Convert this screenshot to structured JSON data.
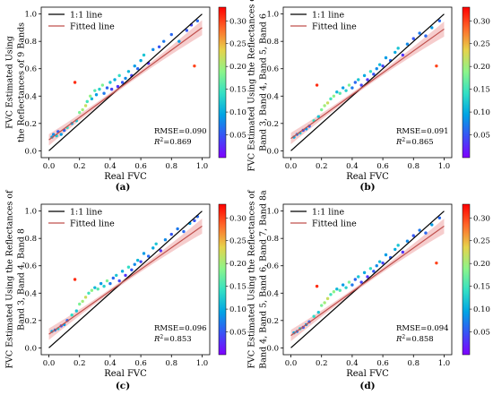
{
  "shared": {
    "x_label": "Real FVC",
    "ticks": [
      "0.0",
      "0.2",
      "0.4",
      "0.6",
      "0.8",
      "1.0"
    ],
    "colorbar_ticks": [
      "0.05",
      "0.10",
      "0.15",
      "0.20",
      "0.25",
      "0.30"
    ],
    "legend": [
      "1:1 line",
      "Fitted line"
    ],
    "colors": {
      "one_to_one": "#000000",
      "fitted": "#c0504d",
      "band": "#f2b8b8"
    },
    "colormap": [
      "#7f00ff",
      "#3a52f5",
      "#00a4e4",
      "#33e0c4",
      "#8cf58a",
      "#e6d34b",
      "#ff6a2a",
      "#ff0000"
    ]
  },
  "chart_data": [
    {
      "type": "scatter",
      "panel_label": "(a)",
      "ylabel": [
        "FVC Estimated Using",
        "the Reflectances of 9 Bands"
      ],
      "xlabel": "Real FVC",
      "xlim": [
        -0.05,
        1.05
      ],
      "ylim": [
        -0.05,
        1.05
      ],
      "colorbar_range": [
        0,
        0.33
      ],
      "rmse": "RMSE=0.090",
      "r2_value": "=0.869",
      "fit": {
        "slope": 0.82,
        "intercept": 0.08
      },
      "points": [
        [
          0.02,
          0.1,
          0.1
        ],
        [
          0.03,
          0.12,
          0.08
        ],
        [
          0.05,
          0.11,
          0.12
        ],
        [
          0.06,
          0.14,
          0.05
        ],
        [
          0.08,
          0.12,
          0.09
        ],
        [
          0.1,
          0.15,
          0.06
        ],
        [
          0.12,
          0.17,
          0.14
        ],
        [
          0.15,
          0.2,
          0.1
        ],
        [
          0.17,
          0.5,
          0.31
        ],
        [
          0.18,
          0.22,
          0.12
        ],
        [
          0.2,
          0.28,
          0.18
        ],
        [
          0.22,
          0.3,
          0.2
        ],
        [
          0.24,
          0.33,
          0.22
        ],
        [
          0.25,
          0.36,
          0.15
        ],
        [
          0.27,
          0.4,
          0.19
        ],
        [
          0.28,
          0.38,
          0.11
        ],
        [
          0.3,
          0.44,
          0.16
        ],
        [
          0.31,
          0.41,
          0.09
        ],
        [
          0.33,
          0.45,
          0.13
        ],
        [
          0.35,
          0.48,
          0.18
        ],
        [
          0.36,
          0.42,
          0.07
        ],
        [
          0.38,
          0.46,
          0.06
        ],
        [
          0.4,
          0.5,
          0.12
        ],
        [
          0.41,
          0.45,
          0.04
        ],
        [
          0.43,
          0.52,
          0.1
        ],
        [
          0.45,
          0.47,
          0.03
        ],
        [
          0.46,
          0.55,
          0.14
        ],
        [
          0.48,
          0.5,
          0.05
        ],
        [
          0.5,
          0.53,
          0.08
        ],
        [
          0.52,
          0.58,
          0.11
        ],
        [
          0.54,
          0.55,
          0.04
        ],
        [
          0.56,
          0.62,
          0.09
        ],
        [
          0.58,
          0.6,
          0.06
        ],
        [
          0.6,
          0.66,
          0.1
        ],
        [
          0.62,
          0.7,
          0.12
        ],
        [
          0.65,
          0.64,
          0.03
        ],
        [
          0.68,
          0.74,
          0.08
        ],
        [
          0.72,
          0.76,
          0.05
        ],
        [
          0.75,
          0.8,
          0.07
        ],
        [
          0.8,
          0.85,
          0.06
        ],
        [
          0.85,
          0.8,
          0.09
        ],
        [
          0.9,
          0.88,
          0.05
        ],
        [
          0.93,
          0.92,
          0.04
        ],
        [
          0.95,
          0.62,
          0.3
        ],
        [
          0.97,
          0.95,
          0.06
        ]
      ]
    },
    {
      "type": "scatter",
      "panel_label": "(b)",
      "ylabel": [
        "FVC Estimated Using the Reflectances of",
        "Band 3, Band 4, Band 5, Band 6"
      ],
      "xlabel": "Real FVC",
      "xlim": [
        -0.05,
        1.05
      ],
      "ylim": [
        -0.05,
        1.05
      ],
      "colorbar_range": [
        0,
        0.33
      ],
      "rmse": "RMSE=0.091",
      "r2_value": "=0.865",
      "fit": {
        "slope": 0.8,
        "intercept": 0.09
      },
      "points": [
        [
          0.02,
          0.1,
          0.1
        ],
        [
          0.04,
          0.12,
          0.07
        ],
        [
          0.06,
          0.13,
          0.12
        ],
        [
          0.08,
          0.15,
          0.05
        ],
        [
          0.1,
          0.16,
          0.09
        ],
        [
          0.12,
          0.18,
          0.06
        ],
        [
          0.15,
          0.22,
          0.14
        ],
        [
          0.17,
          0.48,
          0.31
        ],
        [
          0.18,
          0.25,
          0.12
        ],
        [
          0.2,
          0.3,
          0.18
        ],
        [
          0.22,
          0.33,
          0.2
        ],
        [
          0.24,
          0.35,
          0.22
        ],
        [
          0.26,
          0.38,
          0.15
        ],
        [
          0.28,
          0.4,
          0.19
        ],
        [
          0.3,
          0.43,
          0.11
        ],
        [
          0.32,
          0.42,
          0.16
        ],
        [
          0.34,
          0.46,
          0.09
        ],
        [
          0.36,
          0.44,
          0.13
        ],
        [
          0.38,
          0.48,
          0.18
        ],
        [
          0.4,
          0.46,
          0.07
        ],
        [
          0.42,
          0.5,
          0.06
        ],
        [
          0.44,
          0.52,
          0.12
        ],
        [
          0.46,
          0.48,
          0.04
        ],
        [
          0.48,
          0.55,
          0.1
        ],
        [
          0.5,
          0.52,
          0.03
        ],
        [
          0.52,
          0.58,
          0.14
        ],
        [
          0.54,
          0.56,
          0.05
        ],
        [
          0.56,
          0.6,
          0.08
        ],
        [
          0.58,
          0.63,
          0.11
        ],
        [
          0.6,
          0.62,
          0.04
        ],
        [
          0.62,
          0.68,
          0.09
        ],
        [
          0.65,
          0.66,
          0.06
        ],
        [
          0.68,
          0.72,
          0.1
        ],
        [
          0.7,
          0.75,
          0.12
        ],
        [
          0.73,
          0.7,
          0.03
        ],
        [
          0.76,
          0.78,
          0.08
        ],
        [
          0.8,
          0.82,
          0.05
        ],
        [
          0.84,
          0.86,
          0.07
        ],
        [
          0.88,
          0.84,
          0.06
        ],
        [
          0.92,
          0.9,
          0.09
        ],
        [
          0.95,
          0.62,
          0.3
        ],
        [
          0.97,
          0.95,
          0.06
        ]
      ]
    },
    {
      "type": "scatter",
      "panel_label": "(c)",
      "ylabel": [
        "FVC Estimated Using the Reflectances of",
        "Band 3, Band 4, Band 8"
      ],
      "xlabel": "Real FVC",
      "xlim": [
        -0.05,
        1.05
      ],
      "ylim": [
        -0.05,
        1.05
      ],
      "colorbar_range": [
        0,
        0.33
      ],
      "rmse": "RMSE=0.096",
      "r2_value": "=0.853",
      "fit": {
        "slope": 0.79,
        "intercept": 0.1
      },
      "points": [
        [
          0.02,
          0.12,
          0.1
        ],
        [
          0.04,
          0.13,
          0.07
        ],
        [
          0.06,
          0.14,
          0.12
        ],
        [
          0.08,
          0.16,
          0.05
        ],
        [
          0.1,
          0.17,
          0.09
        ],
        [
          0.12,
          0.2,
          0.06
        ],
        [
          0.15,
          0.24,
          0.14
        ],
        [
          0.17,
          0.5,
          0.31
        ],
        [
          0.18,
          0.27,
          0.12
        ],
        [
          0.2,
          0.32,
          0.18
        ],
        [
          0.22,
          0.34,
          0.2
        ],
        [
          0.24,
          0.37,
          0.22
        ],
        [
          0.26,
          0.4,
          0.15
        ],
        [
          0.28,
          0.42,
          0.19
        ],
        [
          0.3,
          0.44,
          0.11
        ],
        [
          0.32,
          0.43,
          0.16
        ],
        [
          0.34,
          0.47,
          0.09
        ],
        [
          0.36,
          0.45,
          0.13
        ],
        [
          0.38,
          0.49,
          0.18
        ],
        [
          0.4,
          0.47,
          0.07
        ],
        [
          0.42,
          0.51,
          0.06
        ],
        [
          0.44,
          0.53,
          0.12
        ],
        [
          0.46,
          0.49,
          0.04
        ],
        [
          0.48,
          0.56,
          0.1
        ],
        [
          0.5,
          0.53,
          0.03
        ],
        [
          0.52,
          0.59,
          0.14
        ],
        [
          0.54,
          0.57,
          0.05
        ],
        [
          0.56,
          0.61,
          0.08
        ],
        [
          0.58,
          0.64,
          0.11
        ],
        [
          0.6,
          0.63,
          0.04
        ],
        [
          0.62,
          0.69,
          0.09
        ],
        [
          0.65,
          0.67,
          0.06
        ],
        [
          0.68,
          0.73,
          0.1
        ],
        [
          0.7,
          0.76,
          0.12
        ],
        [
          0.73,
          0.71,
          0.03
        ],
        [
          0.76,
          0.79,
          0.08
        ],
        [
          0.8,
          0.83,
          0.05
        ],
        [
          0.84,
          0.87,
          0.07
        ],
        [
          0.88,
          0.85,
          0.06
        ],
        [
          0.92,
          0.91,
          0.09
        ],
        [
          0.95,
          0.93,
          0.05
        ],
        [
          0.97,
          0.96,
          0.06
        ]
      ]
    },
    {
      "type": "scatter",
      "panel_label": "(d)",
      "ylabel": [
        "FVC Estimated Using the Reflectances of",
        "Band 4, Band 5, Band 6, Band 7, Band 8a"
      ],
      "xlabel": "Real FVC",
      "xlim": [
        -0.05,
        1.05
      ],
      "ylim": [
        -0.05,
        1.05
      ],
      "colorbar_range": [
        0,
        0.33
      ],
      "rmse": "RMSE=0.094",
      "r2_value": "=0.858",
      "fit": {
        "slope": 0.8,
        "intercept": 0.09
      },
      "points": [
        [
          0.02,
          0.11,
          0.1
        ],
        [
          0.04,
          0.12,
          0.07
        ],
        [
          0.06,
          0.14,
          0.12
        ],
        [
          0.08,
          0.15,
          0.05
        ],
        [
          0.1,
          0.17,
          0.09
        ],
        [
          0.12,
          0.19,
          0.06
        ],
        [
          0.15,
          0.23,
          0.14
        ],
        [
          0.17,
          0.45,
          0.31
        ],
        [
          0.18,
          0.26,
          0.12
        ],
        [
          0.2,
          0.31,
          0.18
        ],
        [
          0.22,
          0.33,
          0.2
        ],
        [
          0.24,
          0.36,
          0.22
        ],
        [
          0.26,
          0.39,
          0.15
        ],
        [
          0.28,
          0.41,
          0.19
        ],
        [
          0.3,
          0.43,
          0.11
        ],
        [
          0.32,
          0.42,
          0.16
        ],
        [
          0.34,
          0.46,
          0.09
        ],
        [
          0.36,
          0.44,
          0.13
        ],
        [
          0.38,
          0.48,
          0.18
        ],
        [
          0.4,
          0.46,
          0.07
        ],
        [
          0.42,
          0.5,
          0.06
        ],
        [
          0.44,
          0.52,
          0.12
        ],
        [
          0.46,
          0.48,
          0.04
        ],
        [
          0.48,
          0.55,
          0.1
        ],
        [
          0.5,
          0.52,
          0.03
        ],
        [
          0.52,
          0.58,
          0.14
        ],
        [
          0.54,
          0.56,
          0.05
        ],
        [
          0.56,
          0.6,
          0.08
        ],
        [
          0.58,
          0.63,
          0.11
        ],
        [
          0.6,
          0.62,
          0.04
        ],
        [
          0.62,
          0.68,
          0.09
        ],
        [
          0.65,
          0.66,
          0.06
        ],
        [
          0.68,
          0.72,
          0.1
        ],
        [
          0.7,
          0.75,
          0.12
        ],
        [
          0.73,
          0.7,
          0.03
        ],
        [
          0.76,
          0.78,
          0.08
        ],
        [
          0.8,
          0.82,
          0.05
        ],
        [
          0.84,
          0.86,
          0.07
        ],
        [
          0.88,
          0.84,
          0.06
        ],
        [
          0.92,
          0.9,
          0.09
        ],
        [
          0.95,
          0.62,
          0.3
        ],
        [
          0.97,
          0.95,
          0.06
        ]
      ]
    }
  ]
}
